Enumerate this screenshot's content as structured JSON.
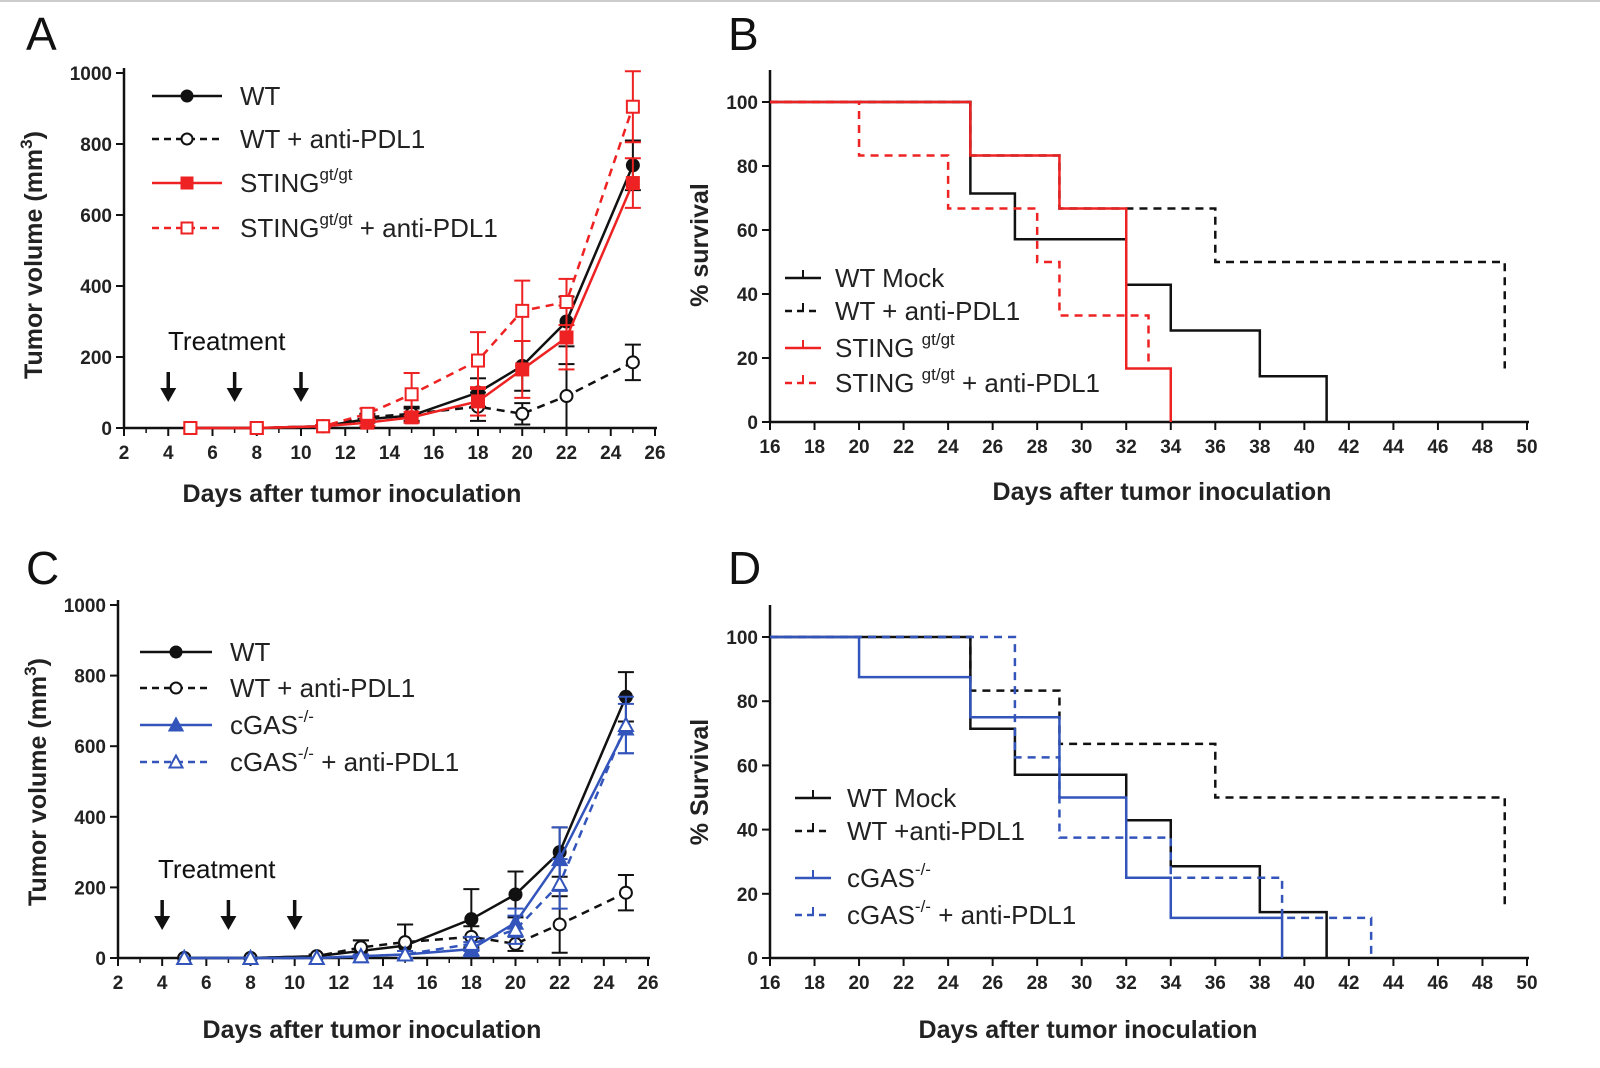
{
  "chart_data": [
    {
      "panel": "A",
      "type": "line",
      "xlabel": "Days after tumor inoculation",
      "ylabel": "Tumor volume (mm3)",
      "ylabel_main": "Tumor volume (mm",
      "ylabel_sup": "3",
      "ylabel_end": ")",
      "xlim": [
        2,
        26
      ],
      "ylim": [
        0,
        1000
      ],
      "xticks": [
        2,
        4,
        6,
        8,
        10,
        12,
        14,
        16,
        18,
        20,
        22,
        24,
        26
      ],
      "yticks": [
        0,
        200,
        400,
        600,
        800,
        1000
      ],
      "annotation": "Treatment",
      "treatment_days": [
        4,
        7,
        10
      ],
      "x": [
        5,
        8,
        11,
        13,
        15,
        18,
        20,
        22,
        25
      ],
      "series": [
        {
          "name": "WT",
          "name_main": "WT",
          "name_sup": "",
          "name_suffix": "",
          "color": "#111111",
          "dash": false,
          "marker": "circle",
          "filled": true,
          "values": [
            0,
            0,
            5,
            25,
            35,
            100,
            175,
            300,
            740
          ],
          "errors": [
            0,
            0,
            3,
            10,
            20,
            40,
            70,
            70,
            70
          ]
        },
        {
          "name": "WT + anti-PDL1",
          "name_main": "WT + anti-PDL1",
          "name_sup": "",
          "name_suffix": "",
          "color": "#111111",
          "dash": true,
          "marker": "circle",
          "filled": false,
          "values": [
            0,
            0,
            5,
            30,
            40,
            60,
            40,
            90,
            185
          ],
          "errors": [
            0,
            0,
            3,
            10,
            20,
            40,
            30,
            90,
            50
          ]
        },
        {
          "name": "STINGgt/gt",
          "name_main": "STING",
          "name_sup": "gt/gt",
          "name_suffix": "",
          "color": "#ee2222",
          "dash": false,
          "marker": "square",
          "filled": true,
          "values": [
            0,
            0,
            5,
            15,
            30,
            75,
            165,
            255,
            690
          ],
          "errors": [
            0,
            0,
            3,
            10,
            15,
            40,
            80,
            90,
            70
          ]
        },
        {
          "name": "STINGgt/gt + anti-PDL1",
          "name_main": "STING",
          "name_sup": "gt/gt",
          "name_suffix": " + anti-PDL1",
          "color": "#ee2222",
          "dash": true,
          "marker": "square",
          "filled": false,
          "values": [
            0,
            0,
            5,
            40,
            95,
            190,
            330,
            355,
            905
          ],
          "errors": [
            0,
            0,
            3,
            15,
            60,
            80,
            85,
            65,
            100
          ]
        }
      ]
    },
    {
      "panel": "B",
      "type": "line",
      "subtype": "kaplan-meier",
      "xlabel": "Days after tumor inoculation",
      "ylabel": "% survival",
      "xlim": [
        16,
        50
      ],
      "ylim": [
        0,
        100
      ],
      "xticks": [
        16,
        18,
        20,
        22,
        24,
        26,
        28,
        30,
        32,
        34,
        36,
        38,
        40,
        42,
        44,
        46,
        48,
        50
      ],
      "yticks": [
        0,
        20,
        40,
        60,
        80,
        100
      ],
      "series": [
        {
          "name": "WT Mock",
          "name_main": "WT Mock",
          "name_sup": "",
          "name_suffix": "",
          "color": "#111111",
          "dash": false,
          "steps": [
            [
              16,
              100
            ],
            [
              25,
              71.4
            ],
            [
              27,
              57.1
            ],
            [
              32,
              42.9
            ],
            [
              34,
              28.6
            ],
            [
              38,
              14.3
            ],
            [
              41,
              0
            ]
          ]
        },
        {
          "name": "WT + anti-PDL1",
          "name_main": "WT + anti-PDL1",
          "name_sup": "",
          "name_suffix": "",
          "color": "#111111",
          "dash": true,
          "steps": [
            [
              16,
              100
            ],
            [
              25,
              83.3
            ],
            [
              29,
              66.7
            ],
            [
              36,
              50
            ],
            [
              49,
              16.7
            ]
          ]
        },
        {
          "name": "STING gt/gt",
          "name_main": "STING ",
          "name_sup": "gt/gt",
          "name_suffix": "",
          "color": "#ee2222",
          "dash": false,
          "steps": [
            [
              16,
              100
            ],
            [
              25,
              83.3
            ],
            [
              29,
              66.7
            ],
            [
              32,
              16.7
            ],
            [
              34,
              0
            ]
          ]
        },
        {
          "name": "STING gt/gt + anti-PDL1",
          "name_main": "STING ",
          "name_sup": "gt/gt",
          "name_suffix": " + anti-PDL1",
          "color": "#ee2222",
          "dash": true,
          "steps": [
            [
              16,
              100
            ],
            [
              20,
              83.3
            ],
            [
              24,
              66.7
            ],
            [
              28,
              50
            ],
            [
              29,
              33.3
            ],
            [
              33,
              16.7
            ]
          ]
        }
      ]
    },
    {
      "panel": "C",
      "type": "line",
      "xlabel": "Days after tumor inoculation",
      "ylabel": "Tumor volume (mm3)",
      "ylabel_main": "Tumor volume (mm",
      "ylabel_sup": "3",
      "ylabel_end": ")",
      "xlim": [
        2,
        26
      ],
      "ylim": [
        0,
        1000
      ],
      "xticks": [
        2,
        4,
        6,
        8,
        10,
        12,
        14,
        16,
        18,
        20,
        22,
        24,
        26
      ],
      "yticks": [
        0,
        200,
        400,
        600,
        800,
        1000
      ],
      "annotation": "Treatment",
      "treatment_days": [
        4,
        7,
        10
      ],
      "x": [
        5,
        8,
        11,
        13,
        15,
        18,
        20,
        22,
        25
      ],
      "series": [
        {
          "name": "WT",
          "name_main": "WT",
          "name_sup": "",
          "name_suffix": "",
          "color": "#111111",
          "dash": false,
          "marker": "circle",
          "filled": true,
          "values": [
            0,
            0,
            5,
            20,
            35,
            110,
            180,
            300,
            740
          ],
          "errors": [
            0,
            0,
            5,
            30,
            60,
            85,
            65,
            70,
            70
          ]
        },
        {
          "name": "WT + anti-PDL1",
          "name_main": "WT + anti-PDL1",
          "name_sup": "",
          "name_suffix": "",
          "color": "#111111",
          "dash": true,
          "marker": "circle",
          "filled": false,
          "values": [
            0,
            0,
            5,
            30,
            45,
            60,
            40,
            95,
            185
          ],
          "errors": [
            0,
            0,
            5,
            20,
            50,
            30,
            20,
            80,
            50
          ]
        },
        {
          "name": "cGAS-/-",
          "name_main": "cGAS",
          "name_sup": "-/-",
          "name_suffix": "",
          "color": "#3355bb",
          "dash": false,
          "marker": "triangle",
          "filled": true,
          "values": [
            0,
            0,
            0,
            5,
            10,
            25,
            100,
            280,
            650
          ],
          "errors": [
            0,
            0,
            0,
            5,
            10,
            20,
            40,
            90,
            70
          ]
        },
        {
          "name": "cGAS-/- + anti-PDL1",
          "name_main": "cGAS",
          "name_sup": "-/-",
          "name_suffix": " + anti-PDL1",
          "color": "#3355bb",
          "dash": true,
          "marker": "triangle",
          "filled": false,
          "values": [
            0,
            0,
            0,
            5,
            10,
            40,
            80,
            210,
            660
          ],
          "errors": [
            0,
            0,
            0,
            5,
            10,
            20,
            40,
            70,
            80
          ]
        }
      ]
    },
    {
      "panel": "D",
      "type": "line",
      "subtype": "kaplan-meier",
      "xlabel": "Days after tumor inoculation",
      "ylabel": "% Survival",
      "xlim": [
        16,
        50
      ],
      "ylim": [
        0,
        100
      ],
      "xticks": [
        16,
        18,
        20,
        22,
        24,
        26,
        28,
        30,
        32,
        34,
        36,
        38,
        40,
        42,
        44,
        46,
        48,
        50
      ],
      "yticks": [
        0,
        20,
        40,
        60,
        80,
        100
      ],
      "series": [
        {
          "name": "WT Mock",
          "name_main": "WT Mock",
          "name_sup": "",
          "name_suffix": "",
          "color": "#111111",
          "dash": false,
          "steps": [
            [
              16,
              100
            ],
            [
              25,
              71.4
            ],
            [
              27,
              57.1
            ],
            [
              32,
              42.9
            ],
            [
              34,
              28.6
            ],
            [
              38,
              14.3
            ],
            [
              41,
              0
            ]
          ]
        },
        {
          "name": "WT +anti-PDL1",
          "name_main": "WT +anti-PDL1",
          "name_sup": "",
          "name_suffix": "",
          "color": "#111111",
          "dash": true,
          "steps": [
            [
              16,
              100
            ],
            [
              25,
              83.3
            ],
            [
              29,
              66.7
            ],
            [
              36,
              50
            ],
            [
              49,
              16.7
            ]
          ]
        },
        {
          "name": "cGAS-/-",
          "name_main": "cGAS",
          "name_sup": "-/-",
          "name_suffix": "",
          "color": "#3355bb",
          "dash": false,
          "steps": [
            [
              16,
              100
            ],
            [
              20,
              87.5
            ],
            [
              25,
              75
            ],
            [
              29,
              50
            ],
            [
              32,
              25
            ],
            [
              34,
              12.5
            ],
            [
              39,
              0
            ]
          ]
        },
        {
          "name": "cGAS-/- + anti-PDL1",
          "name_main": "cGAS",
          "name_sup": "-/-",
          "name_suffix": " + anti-PDL1",
          "color": "#3355bb",
          "dash": true,
          "steps": [
            [
              16,
              100
            ],
            [
              27,
              62.5
            ],
            [
              29,
              37.5
            ],
            [
              34,
              25
            ],
            [
              39,
              12.5
            ],
            [
              43,
              0
            ]
          ]
        }
      ]
    }
  ]
}
